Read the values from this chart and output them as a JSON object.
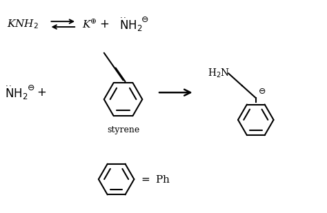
{
  "background_color": "#ffffff",
  "text_color": "#000000",
  "line_color": "#000000",
  "figsize": [
    4.74,
    3.09
  ],
  "dpi": 100
}
